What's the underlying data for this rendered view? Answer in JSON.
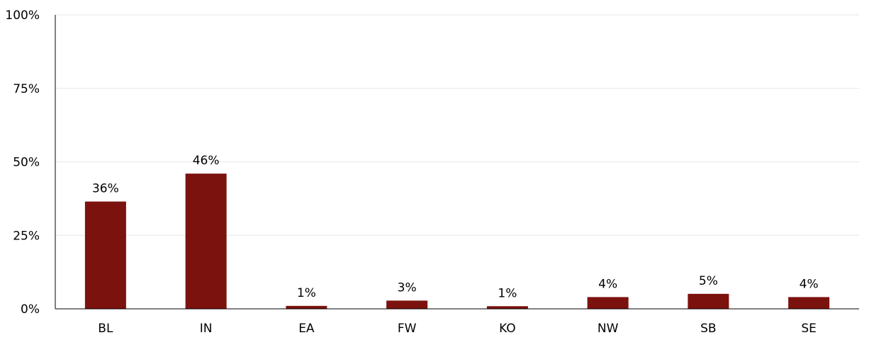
{
  "chart_data": {
    "type": "bar",
    "categories": [
      "BL",
      "IN",
      "EA",
      "FW",
      "KO",
      "NW",
      "SB",
      "SE"
    ],
    "values": [
      36.5,
      46,
      1,
      2.8,
      0.9,
      4,
      5.1,
      4
    ],
    "data_labels": [
      "36%",
      "46%",
      "1%",
      "3%",
      "1%",
      "4%",
      "5%",
      "4%"
    ],
    "y_ticks": [
      0,
      25,
      50,
      75,
      100
    ],
    "y_tick_labels": [
      "0%",
      "25%",
      "50%",
      "75%",
      "100%"
    ],
    "ylim": [
      0,
      100
    ],
    "title": "",
    "xlabel": "",
    "ylabel": "",
    "grid": true,
    "legend": "none",
    "bar_color": "#7b120e"
  }
}
